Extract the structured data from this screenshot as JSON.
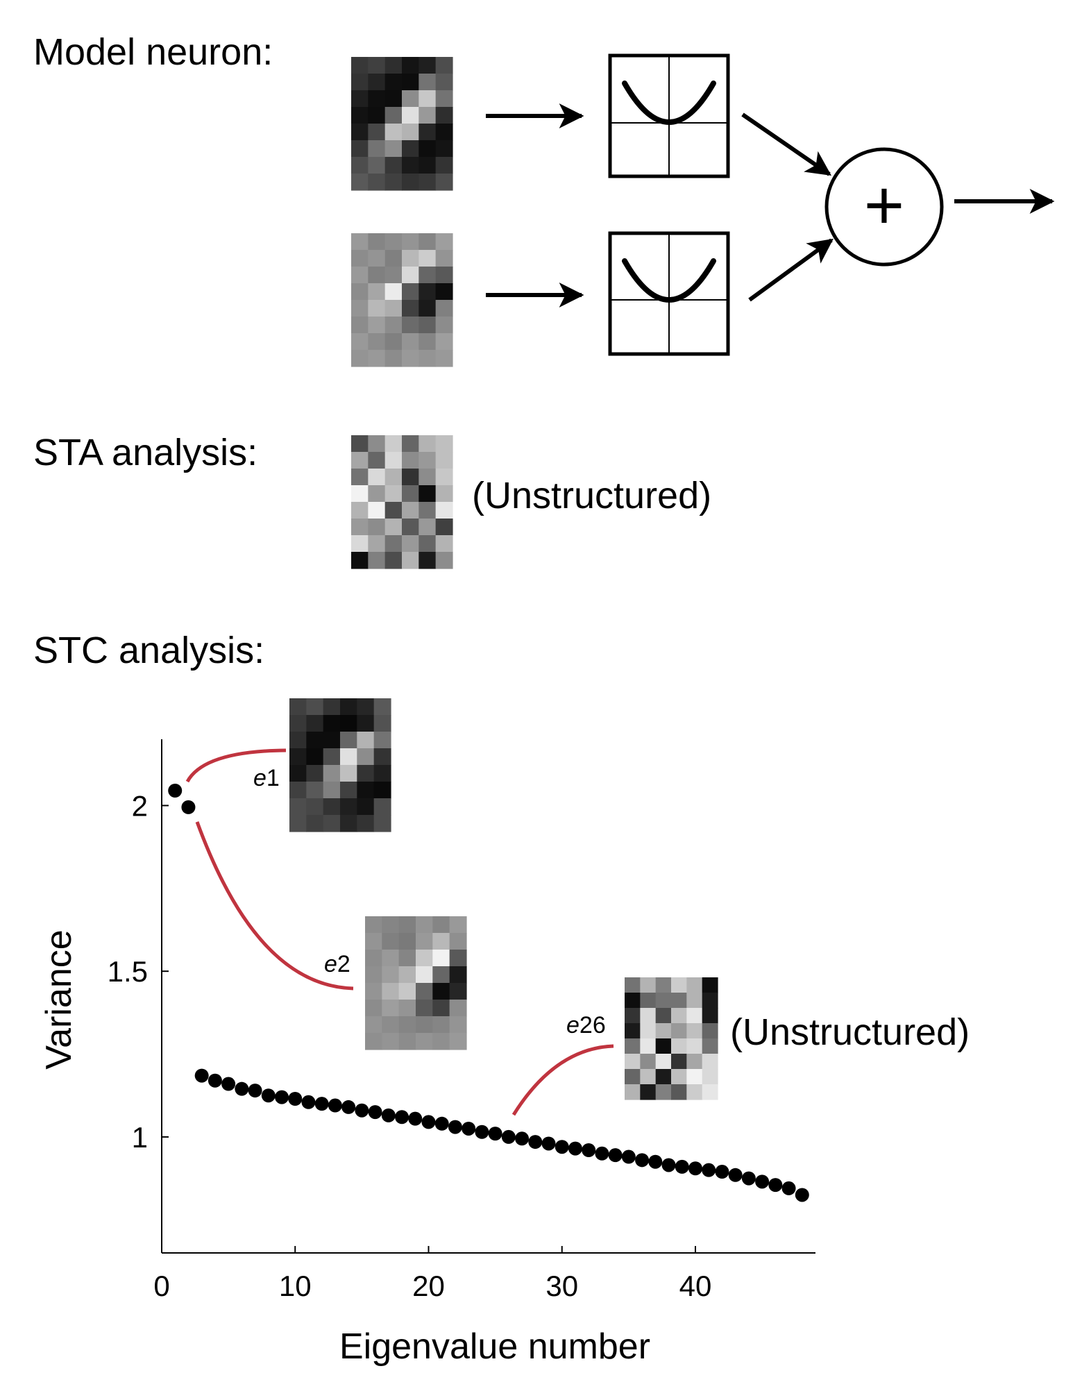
{
  "labels": {
    "model_neuron": "Model neuron:",
    "sta_analysis": "STA analysis:",
    "stc_analysis": "STC analysis:",
    "sta_note": "(Unstructured)",
    "e26_note": "(Unstructured)",
    "plus_symbol": "+"
  },
  "eigen_labels": {
    "e1_letter": "e",
    "e1_num": "1",
    "e2_letter": "e",
    "e2_num": "2",
    "e26_letter": "e",
    "e26_num": "26"
  },
  "colors": {
    "connector": "#c0343f",
    "ink": "#000000"
  },
  "icons": [
    "squaring-nonlinearity-icon",
    "summation-icon",
    "arrow-icon"
  ],
  "patches": {
    "filter1": [
      [
        0.22,
        0.25,
        0.18,
        0.08,
        0.12,
        0.3
      ],
      [
        0.2,
        0.14,
        0.06,
        0.05,
        0.45,
        0.35
      ],
      [
        0.12,
        0.06,
        0.05,
        0.55,
        0.78,
        0.45
      ],
      [
        0.07,
        0.05,
        0.4,
        0.88,
        0.6,
        0.18
      ],
      [
        0.1,
        0.28,
        0.75,
        0.7,
        0.15,
        0.06
      ],
      [
        0.22,
        0.45,
        0.55,
        0.18,
        0.05,
        0.08
      ],
      [
        0.3,
        0.38,
        0.22,
        0.1,
        0.08,
        0.2
      ],
      [
        0.35,
        0.3,
        0.25,
        0.2,
        0.22,
        0.3
      ]
    ],
    "filter2": [
      [
        0.6,
        0.52,
        0.55,
        0.58,
        0.52,
        0.62
      ],
      [
        0.55,
        0.58,
        0.5,
        0.72,
        0.8,
        0.58
      ],
      [
        0.6,
        0.5,
        0.52,
        0.85,
        0.4,
        0.35
      ],
      [
        0.55,
        0.65,
        0.92,
        0.35,
        0.12,
        0.05
      ],
      [
        0.58,
        0.72,
        0.68,
        0.25,
        0.1,
        0.5
      ],
      [
        0.55,
        0.62,
        0.55,
        0.42,
        0.38,
        0.55
      ],
      [
        0.6,
        0.55,
        0.5,
        0.58,
        0.52,
        0.62
      ],
      [
        0.58,
        0.6,
        0.55,
        0.6,
        0.58,
        0.6
      ]
    ],
    "sta": [
      [
        0.3,
        0.55,
        0.8,
        0.4,
        0.7,
        0.75
      ],
      [
        0.65,
        0.4,
        0.85,
        0.55,
        0.6,
        0.75
      ],
      [
        0.45,
        0.85,
        0.7,
        0.2,
        0.55,
        0.78
      ],
      [
        0.95,
        0.6,
        0.75,
        0.4,
        0.05,
        0.7
      ],
      [
        0.7,
        0.95,
        0.3,
        0.65,
        0.45,
        0.9
      ],
      [
        0.6,
        0.55,
        0.7,
        0.35,
        0.6,
        0.25
      ],
      [
        0.85,
        0.65,
        0.45,
        0.6,
        0.4,
        0.7
      ],
      [
        0.05,
        0.5,
        0.3,
        0.7,
        0.1,
        0.55
      ]
    ],
    "e1": [
      [
        0.25,
        0.3,
        0.2,
        0.1,
        0.15,
        0.35
      ],
      [
        0.22,
        0.15,
        0.04,
        0.03,
        0.1,
        0.32
      ],
      [
        0.18,
        0.05,
        0.05,
        0.4,
        0.7,
        0.45
      ],
      [
        0.1,
        0.04,
        0.3,
        0.88,
        0.55,
        0.2
      ],
      [
        0.08,
        0.2,
        0.55,
        0.75,
        0.2,
        0.12
      ],
      [
        0.25,
        0.35,
        0.5,
        0.25,
        0.06,
        0.04
      ],
      [
        0.3,
        0.28,
        0.2,
        0.12,
        0.08,
        0.3
      ],
      [
        0.3,
        0.25,
        0.28,
        0.15,
        0.2,
        0.3
      ]
    ],
    "e2": [
      [
        0.55,
        0.52,
        0.5,
        0.58,
        0.52,
        0.6
      ],
      [
        0.58,
        0.5,
        0.48,
        0.6,
        0.72,
        0.56
      ],
      [
        0.55,
        0.6,
        0.52,
        0.78,
        0.95,
        0.35
      ],
      [
        0.56,
        0.62,
        0.7,
        0.9,
        0.4,
        0.1
      ],
      [
        0.58,
        0.7,
        0.78,
        0.4,
        0.05,
        0.15
      ],
      [
        0.55,
        0.62,
        0.58,
        0.35,
        0.25,
        0.55
      ],
      [
        0.58,
        0.55,
        0.52,
        0.5,
        0.52,
        0.58
      ],
      [
        0.56,
        0.58,
        0.55,
        0.58,
        0.56,
        0.6
      ]
    ],
    "e26": [
      [
        0.45,
        0.7,
        0.5,
        0.8,
        0.7,
        0.05
      ],
      [
        0.05,
        0.4,
        0.45,
        0.45,
        0.7,
        0.1
      ],
      [
        0.2,
        0.85,
        0.3,
        0.75,
        0.9,
        0.1
      ],
      [
        0.1,
        0.85,
        0.7,
        0.6,
        0.75,
        0.4
      ],
      [
        0.45,
        0.9,
        0.05,
        0.8,
        0.85,
        0.45
      ],
      [
        0.8,
        0.55,
        0.9,
        0.2,
        0.65,
        0.85
      ],
      [
        0.4,
        0.75,
        0.1,
        0.75,
        0.95,
        0.85
      ],
      [
        0.7,
        0.1,
        0.5,
        0.35,
        0.8,
        0.9
      ]
    ]
  },
  "chart_data": {
    "type": "scatter",
    "xlabel": "Eigenvalue number",
    "ylabel": "Variance",
    "xlim": [
      0,
      49
    ],
    "ylim": [
      0.65,
      2.2
    ],
    "xticks": [
      0,
      10,
      20,
      30,
      40
    ],
    "yticks": [
      1,
      1.5,
      2
    ],
    "ytick_labels": [
      "1",
      "1.5",
      "2"
    ],
    "grid": false,
    "points": [
      [
        1,
        2.045
      ],
      [
        2,
        1.995
      ],
      [
        3,
        1.185
      ],
      [
        4,
        1.17
      ],
      [
        5,
        1.16
      ],
      [
        6,
        1.145
      ],
      [
        7,
        1.14
      ],
      [
        8,
        1.125
      ],
      [
        9,
        1.12
      ],
      [
        10,
        1.115
      ],
      [
        11,
        1.105
      ],
      [
        12,
        1.1
      ],
      [
        13,
        1.095
      ],
      [
        14,
        1.09
      ],
      [
        15,
        1.08
      ],
      [
        16,
        1.075
      ],
      [
        17,
        1.065
      ],
      [
        18,
        1.06
      ],
      [
        19,
        1.055
      ],
      [
        20,
        1.045
      ],
      [
        21,
        1.04
      ],
      [
        22,
        1.03
      ],
      [
        23,
        1.025
      ],
      [
        24,
        1.015
      ],
      [
        25,
        1.01
      ],
      [
        26,
        1.0
      ],
      [
        27,
        0.995
      ],
      [
        28,
        0.985
      ],
      [
        29,
        0.98
      ],
      [
        30,
        0.97
      ],
      [
        31,
        0.965
      ],
      [
        32,
        0.96
      ],
      [
        33,
        0.95
      ],
      [
        34,
        0.945
      ],
      [
        35,
        0.94
      ],
      [
        36,
        0.93
      ],
      [
        37,
        0.925
      ],
      [
        38,
        0.915
      ],
      [
        39,
        0.91
      ],
      [
        40,
        0.905
      ],
      [
        41,
        0.9
      ],
      [
        42,
        0.895
      ],
      [
        43,
        0.885
      ],
      [
        44,
        0.875
      ],
      [
        45,
        0.865
      ],
      [
        46,
        0.855
      ],
      [
        47,
        0.845
      ],
      [
        48,
        0.825
      ]
    ]
  }
}
